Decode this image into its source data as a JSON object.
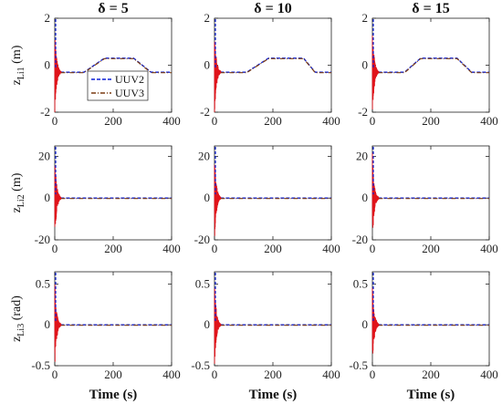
{
  "colors": {
    "uuv2": "#0b1fd6",
    "uuv3": "#7a3b12",
    "burst": "#e0141b",
    "axis": "#222222"
  },
  "chart_data": {
    "type": "line",
    "column_titles": [
      "δ = 5",
      "δ = 10",
      "δ = 15"
    ],
    "x_label": "Time (s)",
    "xlim": [
      0,
      400
    ],
    "xticks": [
      "0",
      "200",
      "400"
    ],
    "legend": {
      "location": "lower-left of top-left panel",
      "entries": [
        "UUV2",
        "UUV3"
      ]
    },
    "rows": [
      {
        "ylabel_main": "z",
        "ylabel_sub": "Li1",
        "ylabel_unit": "(m)",
        "ylim": [
          -2,
          2
        ],
        "yticks": [
          -2,
          0,
          2
        ],
        "panels": [
          {
            "plateau_start": 100,
            "plateau_top_start": 170,
            "plateau_top_end": 270,
            "plateau_end": 330,
            "base": -0.3,
            "top": 0.3
          },
          {
            "plateau_start": 110,
            "plateau_top_start": 185,
            "plateau_top_end": 305,
            "plateau_end": 345,
            "base": -0.3,
            "top": 0.3
          },
          {
            "plateau_start": 110,
            "plateau_top_start": 165,
            "plateau_top_end": 290,
            "plateau_end": 340,
            "base": -0.3,
            "top": 0.3
          }
        ]
      },
      {
        "ylabel_main": "z",
        "ylabel_sub": "Li2",
        "ylabel_unit": "(m)",
        "ylim": [
          -20,
          25
        ],
        "yticks": [
          -20,
          0,
          20
        ],
        "panels": [
          {
            "base": 0
          },
          {
            "base": 0
          },
          {
            "base": 0
          }
        ]
      },
      {
        "ylabel_main": "z",
        "ylabel_sub": "Li3",
        "ylabel_unit": "(rad)",
        "ylim": [
          -0.5,
          0.65
        ],
        "yticks": [
          -0.5,
          0,
          0.5
        ],
        "panels": [
          {
            "base": 0
          },
          {
            "base": 0
          },
          {
            "base": 0
          }
        ]
      }
    ]
  }
}
